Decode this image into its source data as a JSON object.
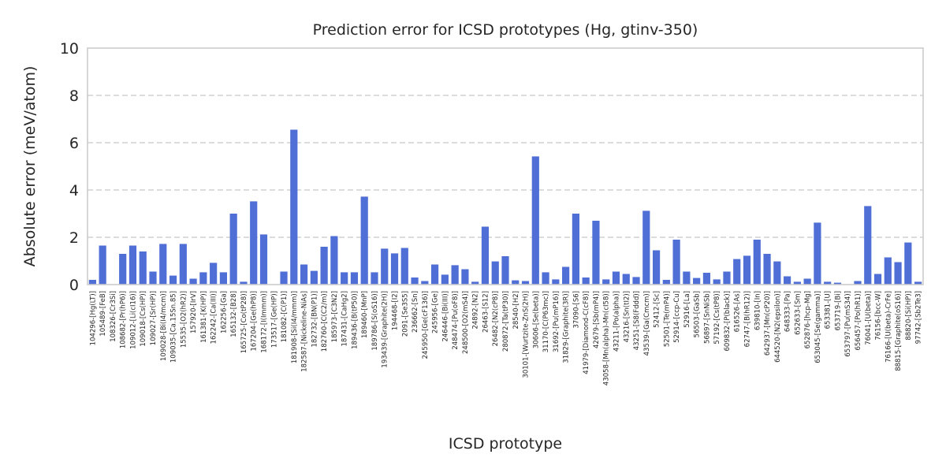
{
  "chart_data": {
    "type": "bar",
    "title": "Prediction error for ICSD prototypes (Hg, gtinv-350)",
    "xlabel": "ICSD prototype",
    "ylabel": "Absolute error (meV/atom)",
    "ylim": [
      0,
      10
    ],
    "yticks": [
      0,
      2,
      4,
      6,
      8,
      10
    ],
    "grid": true,
    "bar_color": "#4f6fd6",
    "categories": [
      "104296-[Hg(LT)]",
      "105489-[FeB]",
      "108326-[Cr3Si]",
      "108682-[Pr(hP6)]",
      "109012-[Li(cI16)]",
      "109018-[Cs(HP)]",
      "109027-[Sr(HP)]",
      "109028-[Bi(I4/mcm)]",
      "109035-[Ca.15Sn.85]",
      "15535-[O2(hR2)]",
      "157920-[IrV]",
      "161381-[K(HP)]",
      "162242-[Ca(III)]",
      "162256-[Ga]",
      "165132-[B28]",
      "165725-[Co(tP28)]",
      "167204-[Ge(hP8)]",
      "168172-[I(Immm)]",
      "173517-[Ge(HP)]",
      "181082-[C(P1)]",
      "181908-[Si(I4/mmm)]",
      "182587-[Nickeline-NiAs]",
      "182732-[BN(P1)]",
      "182760-[C(C2/m)]",
      "185973-[C3N2]",
      "187431-[CaHg2]",
      "189436-[B(tP50)]",
      "189460-[MnP]",
      "189786-[S(oS16)]",
      "193439-[Graphite(2H)]",
      "194468-[I2]",
      "2091-[Se3S5]",
      "236662-[Sn]",
      "245950-[Ge(cF136)]",
      "245956-[Ge]",
      "246446-[Bi(III)]",
      "248474-[Pu(oF8)]",
      "248500-[O2(mS4)]",
      "24892-[N2]",
      "26463-[S12]",
      "26482-[N2(cP8)]",
      "280872-[Ta(tP30)]",
      "28540-[H2]",
      "30101-[Wurtzite-ZnS(2H)]",
      "30606-[Se(beta)]",
      "31170-[C(P63mc)]",
      "31692-[Pu(mP16)]",
      "31829-[Graphite(3R)]",
      "37090-[S6]",
      "41979-[Diamond-C(cF8)]",
      "42679-[Sb(mP4)]",
      "43058-[Mn(alpha)-Mn(cI58)]",
      "43211-[Po(alpha)]",
      "43216-[Sn(tI2)]",
      "43251-[S8(Fddd)]",
      "43539-[Ga(Cmcm)]",
      "52412-[Sc]",
      "52501-[Te(mP4)]",
      "52914-[ccp-Cu]",
      "52916-[La]",
      "56503-[GaSb]",
      "56897-[SnNiSb]",
      "57192-[Cs(tP8)]",
      "609832-[P(black)]",
      "616526-[As]",
      "62747-[B(hR12)]",
      "639810-[In]",
      "642937-[Mn(cP20)]",
      "644520-[N2(epsilon)]",
      "648333-[Pa]",
      "652633-[Sm]",
      "652876-[hcp-Mg]",
      "653045-[Se(gamma)]",
      "653381-[U]",
      "653719-[Bi]",
      "653797-[Pu(mS34)]",
      "656457-[Po(hR1)]",
      "76041-[U(beta)]",
      "76156-[bcc-W]",
      "76166-[U(beta)-CrFe]",
      "88815-[Graphite(oS16)]",
      "88820-[Si(HP)]",
      "97742-[Sb2Te3]"
    ],
    "values": [
      0.2,
      1.65,
      0.0,
      1.3,
      1.65,
      1.4,
      0.55,
      1.72,
      0.38,
      1.72,
      0.25,
      0.52,
      0.92,
      0.52,
      3.0,
      0.12,
      3.52,
      2.12,
      0.0,
      0.55,
      6.55,
      0.85,
      0.58,
      1.6,
      2.05,
      0.52,
      0.52,
      3.72,
      0.52,
      1.52,
      1.32,
      1.55,
      0.3,
      0.15,
      0.85,
      0.42,
      0.82,
      0.65,
      0.12,
      2.45,
      0.98,
      1.2,
      0.18,
      0.15,
      5.42,
      0.52,
      0.22,
      0.75,
      3.0,
      0.3,
      2.7,
      0.22,
      0.55,
      0.45,
      0.32,
      3.12,
      1.45,
      0.2,
      1.9,
      0.55,
      0.28,
      0.5,
      0.22,
      0.55,
      1.08,
      1.22,
      1.9,
      1.3,
      0.98,
      0.35,
      0.12,
      0.25,
      2.62,
      0.12,
      0.08,
      0.0,
      0.15,
      3.32,
      0.45,
      1.15,
      0.95,
      1.78,
      0.12
    ]
  }
}
